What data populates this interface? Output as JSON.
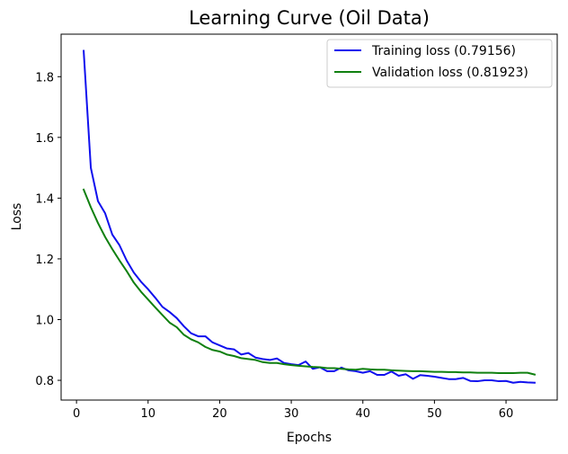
{
  "chart_data": {
    "type": "line",
    "title": "Learning Curve (Oil Data)",
    "xlabel": "Epochs",
    "ylabel": "Loss",
    "xlim": [
      -2.15,
      67.15
    ],
    "ylim": [
      0.735,
      1.94
    ],
    "xticks": [
      0,
      10,
      20,
      30,
      40,
      50,
      60
    ],
    "yticks": [
      0.8,
      1.0,
      1.2,
      1.4,
      1.6,
      1.8
    ],
    "ytick_labels": [
      "0.8",
      "1.0",
      "1.2",
      "1.4",
      "1.6",
      "1.8"
    ],
    "grid": false,
    "legend_position": "top-right",
    "series": [
      {
        "name": "Training loss (0.79156)",
        "color": "#1010ee",
        "x": [
          1,
          2,
          3,
          4,
          5,
          6,
          7,
          8,
          9,
          10,
          11,
          12,
          13,
          14,
          15,
          16,
          17,
          18,
          19,
          20,
          21,
          22,
          23,
          24,
          25,
          26,
          27,
          28,
          29,
          30,
          31,
          32,
          33,
          34,
          35,
          36,
          37,
          38,
          39,
          40,
          41,
          42,
          43,
          44,
          45,
          46,
          47,
          48,
          49,
          50,
          51,
          52,
          53,
          54,
          55,
          56,
          57,
          58,
          59,
          60,
          61,
          62,
          63,
          64
        ],
        "values": [
          1.885,
          1.5,
          1.39,
          1.35,
          1.28,
          1.245,
          1.195,
          1.155,
          1.125,
          1.1,
          1.072,
          1.042,
          1.025,
          1.005,
          0.978,
          0.955,
          0.945,
          0.945,
          0.925,
          0.915,
          0.905,
          0.902,
          0.885,
          0.89,
          0.875,
          0.87,
          0.867,
          0.872,
          0.857,
          0.853,
          0.85,
          0.862,
          0.838,
          0.843,
          0.83,
          0.83,
          0.842,
          0.833,
          0.83,
          0.825,
          0.83,
          0.818,
          0.818,
          0.829,
          0.815,
          0.82,
          0.805,
          0.817,
          0.815,
          0.812,
          0.808,
          0.804,
          0.804,
          0.808,
          0.798,
          0.797,
          0.8,
          0.8,
          0.797,
          0.798,
          0.792,
          0.795,
          0.793,
          0.792
        ]
      },
      {
        "name": "Validation loss (0.81923)",
        "color": "#108010",
        "x": [
          1,
          2,
          3,
          4,
          5,
          6,
          7,
          8,
          9,
          10,
          11,
          12,
          13,
          14,
          15,
          16,
          17,
          18,
          19,
          20,
          21,
          22,
          23,
          24,
          25,
          26,
          27,
          28,
          29,
          30,
          31,
          32,
          33,
          34,
          35,
          36,
          37,
          38,
          39,
          40,
          41,
          42,
          43,
          44,
          45,
          46,
          47,
          48,
          49,
          50,
          51,
          52,
          53,
          54,
          55,
          56,
          57,
          58,
          59,
          60,
          61,
          62,
          63,
          64
        ],
        "values": [
          1.428,
          1.37,
          1.318,
          1.272,
          1.232,
          1.195,
          1.16,
          1.122,
          1.092,
          1.066,
          1.04,
          1.015,
          0.99,
          0.975,
          0.95,
          0.935,
          0.925,
          0.91,
          0.9,
          0.895,
          0.885,
          0.88,
          0.873,
          0.87,
          0.867,
          0.86,
          0.857,
          0.857,
          0.853,
          0.85,
          0.848,
          0.846,
          0.844,
          0.843,
          0.84,
          0.84,
          0.838,
          0.836,
          0.835,
          0.838,
          0.836,
          0.835,
          0.835,
          0.833,
          0.832,
          0.831,
          0.83,
          0.83,
          0.829,
          0.828,
          0.828,
          0.827,
          0.827,
          0.826,
          0.826,
          0.825,
          0.825,
          0.825,
          0.824,
          0.824,
          0.824,
          0.825,
          0.825,
          0.819
        ]
      }
    ]
  }
}
